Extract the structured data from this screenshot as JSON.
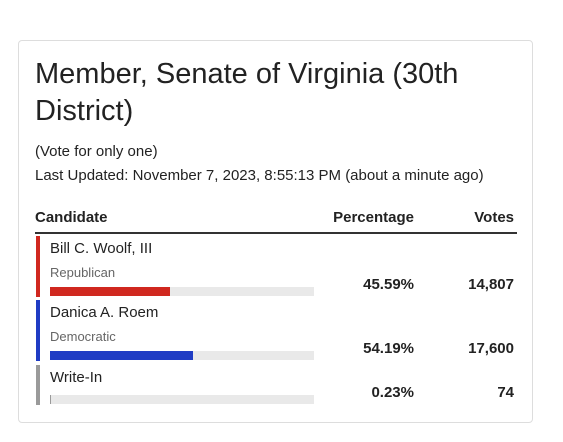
{
  "header": {
    "title": "Member, Senate of Virginia (30th District)",
    "note": "(Vote for only one)",
    "updated": "Last Updated: November 7, 2023, 8:55:13 PM (about a minute ago)"
  },
  "table": {
    "columns": [
      "Candidate",
      "Percentage",
      "Votes"
    ],
    "rows": [
      {
        "name": "Bill C. Woolf, III",
        "party": "Republican",
        "color": "#d0281f",
        "percentage": 45.59,
        "percentage_label": "45.59%",
        "votes": "14,807"
      },
      {
        "name": "Danica A. Roem",
        "party": "Democratic",
        "color": "#1f3cc4",
        "percentage": 54.19,
        "percentage_label": "54.19%",
        "votes": "17,600"
      },
      {
        "name": "Write-In",
        "color": "#9a9a9a",
        "percentage": 0.23,
        "percentage_label": "0.23%",
        "votes": "74"
      }
    ]
  }
}
